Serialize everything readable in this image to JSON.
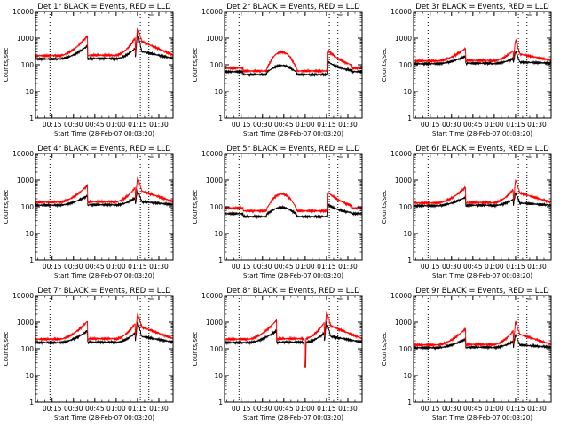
{
  "colors": {
    "events": "#000000",
    "lld": "#ff0000",
    "axes": "#000000",
    "background": "#ffffff"
  },
  "chart_data": [
    {
      "type": "line",
      "title": "Det 1r BLACK = Events, RED = LLD",
      "xlabel": "Start Time (28-Feb-07 00:03:20)",
      "ylabel": "Counts/sec",
      "xlim": [
        "00:03:20",
        "01:40:00"
      ],
      "ylim": [
        1,
        10000
      ],
      "yscale": "log",
      "x_ticks": [
        "00:15",
        "00:30",
        "00:45",
        "01:00",
        "01:15",
        "01:30"
      ],
      "y_ticks": [
        "1",
        "10",
        "100",
        "1000",
        "10000"
      ],
      "vlines": [
        "00:13:30",
        "01:17:00",
        "01:23:00"
      ],
      "grid": false,
      "series": [
        {
          "name": "Events",
          "color": "#000000",
          "shape": "A",
          "base": 165,
          "hump": 520,
          "spike": 1650
        },
        {
          "name": "LLD",
          "color": "#ff0000",
          "shape": "A",
          "base": 220,
          "hump": 1250,
          "spike": 2600
        }
      ]
    },
    {
      "type": "line",
      "title": "Det 2r BLACK = Events, RED = LLD",
      "xlabel": "Start Time (28-Feb-07 00:03:20)",
      "ylabel": "Counts/sec",
      "xlim": [
        "00:03:20",
        "01:40:00"
      ],
      "ylim": [
        1,
        10000
      ],
      "yscale": "log",
      "x_ticks": [
        "00:15",
        "00:30",
        "00:45",
        "01:00",
        "01:15",
        "01:30"
      ],
      "y_ticks": [
        "1",
        "10",
        "100",
        "1000",
        "10000"
      ],
      "vlines": [
        "00:13:30",
        "01:17:00",
        "01:23:00"
      ],
      "grid": false,
      "series": [
        {
          "name": "Events",
          "color": "#000000",
          "shape": "B",
          "base": 55,
          "hump": 95,
          "spike": 130
        },
        {
          "name": "LLD",
          "color": "#ff0000",
          "shape": "B",
          "base": 75,
          "hump": 300,
          "spike": 340
        }
      ]
    },
    {
      "type": "line",
      "title": "Det 3r BLACK = Events, RED = LLD",
      "xlabel": "Start Time (28-Feb-07 00:03:20)",
      "ylabel": "Counts/sec",
      "xlim": [
        "00:03:20",
        "01:40:00"
      ],
      "ylim": [
        1,
        10000
      ],
      "yscale": "log",
      "x_ticks": [
        "00:15",
        "00:30",
        "00:45",
        "01:00",
        "01:15",
        "01:30"
      ],
      "y_ticks": [
        "1",
        "10",
        "100",
        "1000",
        "10000"
      ],
      "vlines": [
        "00:13:30",
        "01:17:00",
        "01:23:00"
      ],
      "grid": false,
      "series": [
        {
          "name": "Events",
          "color": "#000000",
          "shape": "A",
          "base": 110,
          "hump": 210,
          "spike": 330
        },
        {
          "name": "LLD",
          "color": "#ff0000",
          "shape": "A",
          "base": 140,
          "hump": 420,
          "spike": 900
        }
      ]
    },
    {
      "type": "line",
      "title": "Det 4r BLACK = Events, RED = LLD",
      "xlabel": "Start Time (28-Feb-07 00:03:20)",
      "ylabel": "Counts/sec",
      "xlim": [
        "00:03:20",
        "01:40:00"
      ],
      "ylim": [
        1,
        10000
      ],
      "yscale": "log",
      "x_ticks": [
        "00:15",
        "00:30",
        "00:45",
        "01:00",
        "01:15",
        "01:30"
      ],
      "y_ticks": [
        "1",
        "10",
        "100",
        "1000",
        "10000"
      ],
      "vlines": [
        "00:13:30",
        "01:17:00",
        "01:23:00"
      ],
      "grid": false,
      "series": [
        {
          "name": "Events",
          "color": "#000000",
          "shape": "A",
          "base": 115,
          "hump": 260,
          "spike": 420
        },
        {
          "name": "LLD",
          "color": "#ff0000",
          "shape": "A",
          "base": 150,
          "hump": 650,
          "spike": 1300
        }
      ]
    },
    {
      "type": "line",
      "title": "Det 5r BLACK = Events, RED = LLD",
      "xlabel": "Start Time (28-Feb-07 00:03:20)",
      "ylabel": "Counts/sec",
      "xlim": [
        "00:03:20",
        "01:40:00"
      ],
      "ylim": [
        1,
        10000
      ],
      "yscale": "log",
      "x_ticks": [
        "00:15",
        "00:30",
        "00:45",
        "01:00",
        "01:15",
        "01:30"
      ],
      "y_ticks": [
        "1",
        "10",
        "100",
        "1000",
        "10000"
      ],
      "vlines": [
        "00:13:30",
        "01:17:00",
        "01:23:00"
      ],
      "grid": false,
      "series": [
        {
          "name": "Events",
          "color": "#000000",
          "shape": "B",
          "base": 55,
          "hump": 95,
          "spike": 120
        },
        {
          "name": "LLD",
          "color": "#ff0000",
          "shape": "B",
          "base": 90,
          "hump": 300,
          "spike": 350
        }
      ]
    },
    {
      "type": "line",
      "title": "Det 6r BLACK = Events, RED = LLD",
      "xlabel": "Start Time (28-Feb-07 00:03:20)",
      "ylabel": "Counts/sec",
      "xlim": [
        "00:03:20",
        "01:40:00"
      ],
      "ylim": [
        1,
        10000
      ],
      "yscale": "log",
      "x_ticks": [
        "00:15",
        "00:30",
        "00:45",
        "01:00",
        "01:15",
        "01:30"
      ],
      "y_ticks": [
        "1",
        "10",
        "100",
        "1000",
        "10000"
      ],
      "vlines": [
        "00:13:30",
        "01:17:00",
        "01:23:00"
      ],
      "grid": false,
      "series": [
        {
          "name": "Events",
          "color": "#000000",
          "shape": "A",
          "base": 110,
          "hump": 230,
          "spike": 350
        },
        {
          "name": "LLD",
          "color": "#ff0000",
          "shape": "A",
          "base": 140,
          "hump": 550,
          "spike": 1050
        }
      ]
    },
    {
      "type": "line",
      "title": "Det 7r BLACK = Events, RED = LLD",
      "xlabel": "Start Time (28-Feb-07 00:03:20)",
      "ylabel": "Counts/sec",
      "xlim": [
        "00:03:20",
        "01:40:00"
      ],
      "ylim": [
        1,
        10000
      ],
      "yscale": "log",
      "x_ticks": [
        "00:15",
        "00:30",
        "00:45",
        "01:00",
        "01:15",
        "01:30"
      ],
      "y_ticks": [
        "1",
        "10",
        "100",
        "1000",
        "10000"
      ],
      "vlines": [
        "00:13:30",
        "01:17:00",
        "01:23:00"
      ],
      "grid": false,
      "series": [
        {
          "name": "Events",
          "color": "#000000",
          "shape": "A",
          "base": 170,
          "hump": 480,
          "spike": 1100
        },
        {
          "name": "LLD",
          "color": "#ff0000",
          "shape": "A",
          "base": 230,
          "hump": 1100,
          "spike": 2200
        }
      ]
    },
    {
      "type": "line",
      "title": "Det 8r BLACK = Events, RED = LLD",
      "xlabel": "Start Time (28-Feb-07 00:03:20)",
      "ylabel": "Counts/sec",
      "xlim": [
        "00:03:20",
        "01:40:00"
      ],
      "ylim": [
        1,
        10000
      ],
      "yscale": "log",
      "x_ticks": [
        "00:15",
        "00:30",
        "00:45",
        "01:00",
        "01:15",
        "01:30"
      ],
      "y_ticks": [
        "1",
        "10",
        "100",
        "1000",
        "10000"
      ],
      "vlines": [
        "00:13:30",
        "01:17:00",
        "01:23:00"
      ],
      "grid": false,
      "series": [
        {
          "name": "Events",
          "color": "#000000",
          "shape": "A",
          "base": 170,
          "hump": 480,
          "spike": 1050,
          "dip": 20
        },
        {
          "name": "LLD",
          "color": "#ff0000",
          "shape": "A",
          "base": 230,
          "hump": 1200,
          "spike": 2500,
          "dip": 22
        }
      ]
    },
    {
      "type": "line",
      "title": "Det 9r BLACK = Events, RED = LLD",
      "xlabel": "Start Time (28-Feb-07 00:03:20)",
      "ylabel": "Counts/sec",
      "xlim": [
        "00:03:20",
        "01:40:00"
      ],
      "ylim": [
        1,
        10000
      ],
      "yscale": "log",
      "x_ticks": [
        "00:15",
        "00:30",
        "00:45",
        "01:00",
        "01:15",
        "01:30"
      ],
      "y_ticks": [
        "1",
        "10",
        "100",
        "1000",
        "10000"
      ],
      "vlines": [
        "00:13:30",
        "01:17:00",
        "01:23:00"
      ],
      "grid": false,
      "series": [
        {
          "name": "Events",
          "color": "#000000",
          "shape": "A",
          "base": 110,
          "hump": 230,
          "spike": 340
        },
        {
          "name": "LLD",
          "color": "#ff0000",
          "shape": "A",
          "base": 140,
          "hump": 580,
          "spike": 1100
        }
      ]
    }
  ]
}
